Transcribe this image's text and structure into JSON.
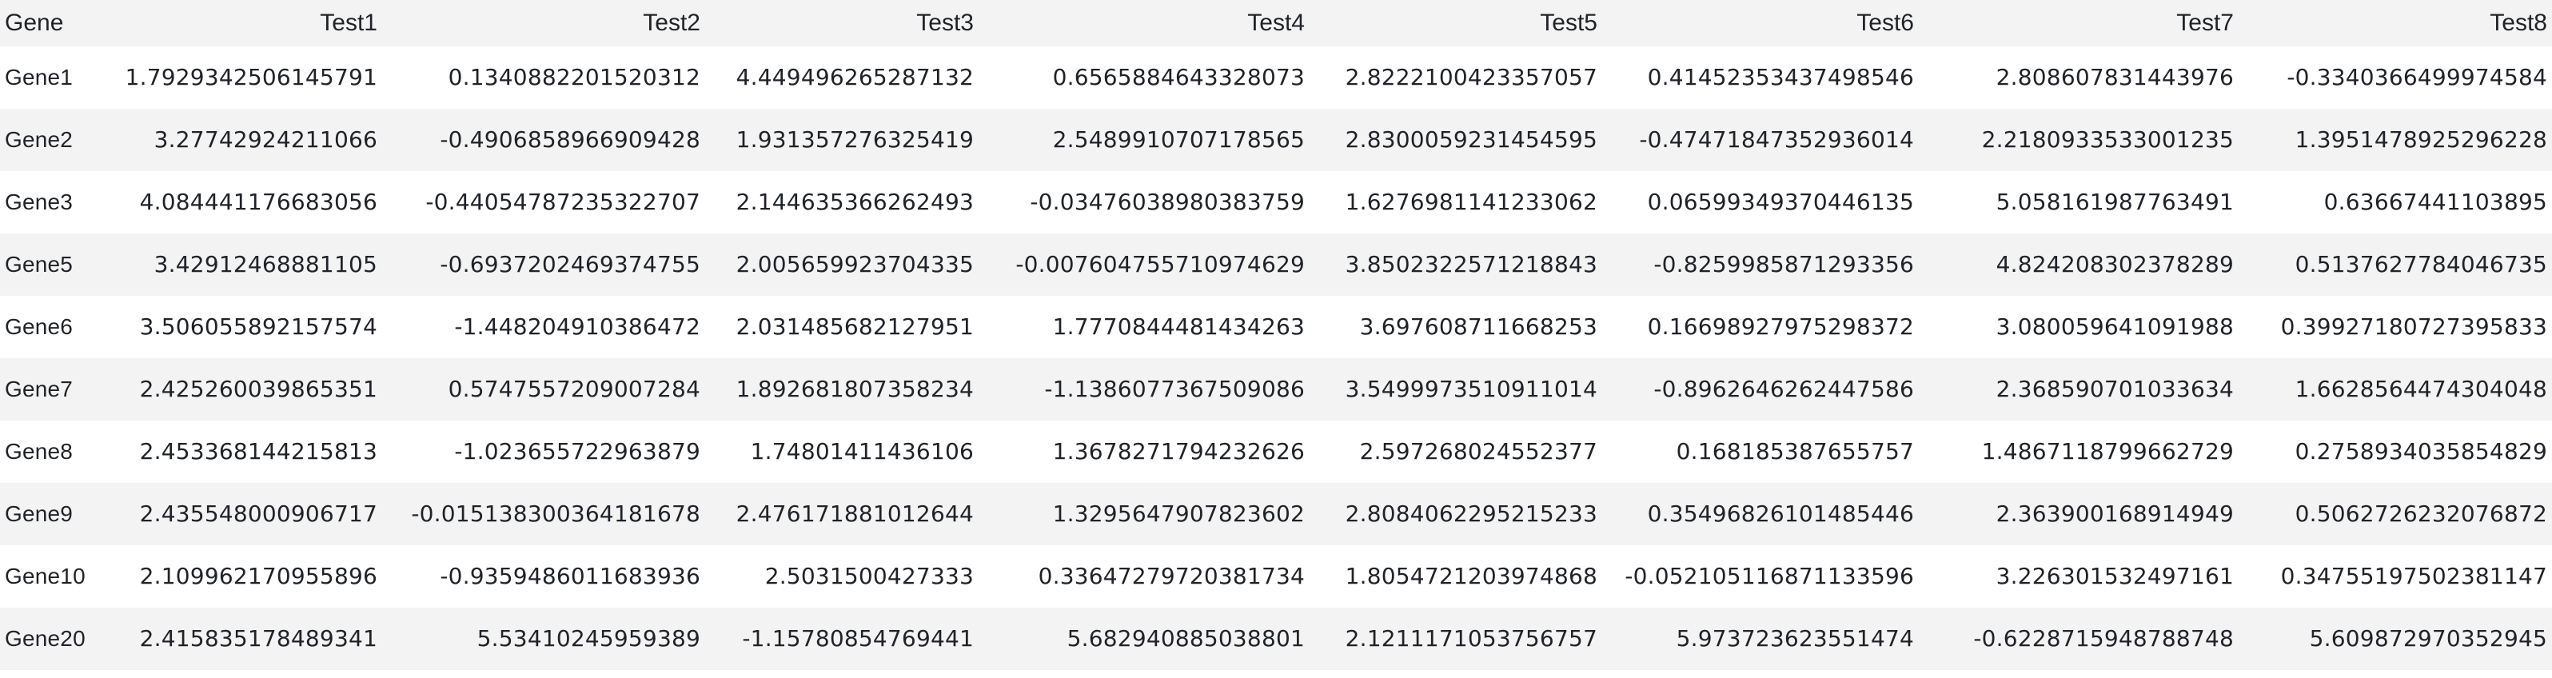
{
  "table": {
    "headers": [
      "Gene",
      "Test1",
      "Test2",
      "Test3",
      "Test4",
      "Test5",
      "Test6",
      "Test7",
      "Test8"
    ],
    "rows": [
      {
        "gene": "Gene1",
        "values": [
          "1.7929342506145791",
          "0.1340882201520312",
          "4.449496265287132",
          "0.6565884643328073",
          "2.8222100423357057",
          "0.41452353437498546",
          "2.808607831443976",
          "-0.3340366499974584"
        ]
      },
      {
        "gene": "Gene2",
        "values": [
          "3.27742924211066",
          "-0.4906858966909428",
          "1.931357276325419",
          "2.5489910707178565",
          "2.8300059231454595",
          "-0.47471847352936014",
          "2.2180933533001235",
          "1.3951478925296228"
        ]
      },
      {
        "gene": "Gene3",
        "values": [
          "4.084441176683056",
          "-0.44054787235322707",
          "2.144635366262493",
          "-0.03476038980383759",
          "1.6276981141233062",
          "0.06599349370446135",
          "5.058161987763491",
          "0.63667441103895"
        ]
      },
      {
        "gene": "Gene5",
        "values": [
          "3.42912468881105",
          "-0.6937202469374755",
          "2.005659923704335",
          "-0.007604755710974629",
          "3.8502322571218843",
          "-0.8259985871293356",
          "4.824208302378289",
          "0.5137627784046735"
        ]
      },
      {
        "gene": "Gene6",
        "values": [
          "3.506055892157574",
          "-1.448204910386472",
          "2.031485682127951",
          "1.7770844481434263",
          "3.697608711668253",
          "0.16698927975298372",
          "3.080059641091988",
          "0.39927180727395833"
        ]
      },
      {
        "gene": "Gene7",
        "values": [
          "2.425260039865351",
          "0.5747557209007284",
          "1.892681807358234",
          "-1.1386077367509086",
          "3.5499973510911014",
          "-0.8962646262447586",
          "2.368590701033634",
          "1.6628564474304048"
        ]
      },
      {
        "gene": "Gene8",
        "values": [
          "2.453368144215813",
          "-1.023655722963879",
          "1.74801411436106",
          "1.3678271794232626",
          "2.597268024552377",
          "0.168185387655757",
          "1.4867118799662729",
          "0.2758934035854829"
        ]
      },
      {
        "gene": "Gene9",
        "values": [
          "2.435548000906717",
          "-0.015138300364181678",
          "2.476171881012644",
          "1.3295647907823602",
          "2.8084062295215233",
          "0.35496826101485446",
          "2.363900168914949",
          "0.5062726232076872"
        ]
      },
      {
        "gene": "Gene10",
        "values": [
          "2.109962170955896",
          "-0.9359486011683936",
          "2.5031500427333",
          "0.33647279720381734",
          "1.8054721203974868",
          "-0.052105116871133596",
          "3.226301532497161",
          "0.34755197502381147"
        ]
      },
      {
        "gene": "Gene20",
        "values": [
          "2.415835178489341",
          "5.53410245959389",
          "-1.15780854769441",
          "5.682940885038801",
          "2.1211171053756757",
          "5.973723623551474",
          "-0.6228715948788748",
          "5.609872970352945"
        ]
      }
    ]
  }
}
